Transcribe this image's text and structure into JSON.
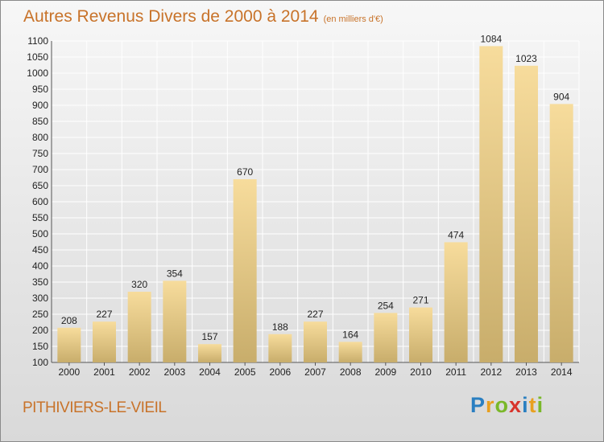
{
  "title": "Autres Revenus Divers de 2000 à 2014",
  "subtitle": "(en milliers d'€)",
  "place_name": "PITHIVIERS-LE-VIEIL",
  "logo": {
    "letters": [
      "P",
      "r",
      "o",
      "x",
      "i",
      "t",
      "i"
    ],
    "colors": [
      "#2a7fc1",
      "#e8a020",
      "#7ab829",
      "#d8342c",
      "#2a7fc1",
      "#e8a020",
      "#7ab829"
    ]
  },
  "colors": {
    "title": "#c8732a",
    "bar_top": "#f7dc9c",
    "bar_bottom": "#c8ad6b",
    "grid": "#ffffff",
    "text": "#222222"
  },
  "chart_data": {
    "type": "bar",
    "categories": [
      "2000",
      "2001",
      "2002",
      "2003",
      "2004",
      "2005",
      "2006",
      "2007",
      "2008",
      "2009",
      "2010",
      "2011",
      "2012",
      "2013",
      "2014"
    ],
    "values": [
      208,
      227,
      320,
      354,
      157,
      670,
      188,
      227,
      164,
      254,
      271,
      474,
      1084,
      1023,
      904
    ],
    "ylim": [
      100,
      1100
    ],
    "yticks": [
      100,
      150,
      200,
      250,
      300,
      350,
      400,
      450,
      500,
      550,
      600,
      650,
      700,
      750,
      800,
      850,
      900,
      950,
      1000,
      1050,
      1100
    ],
    "grid": true,
    "data_labels": true
  }
}
